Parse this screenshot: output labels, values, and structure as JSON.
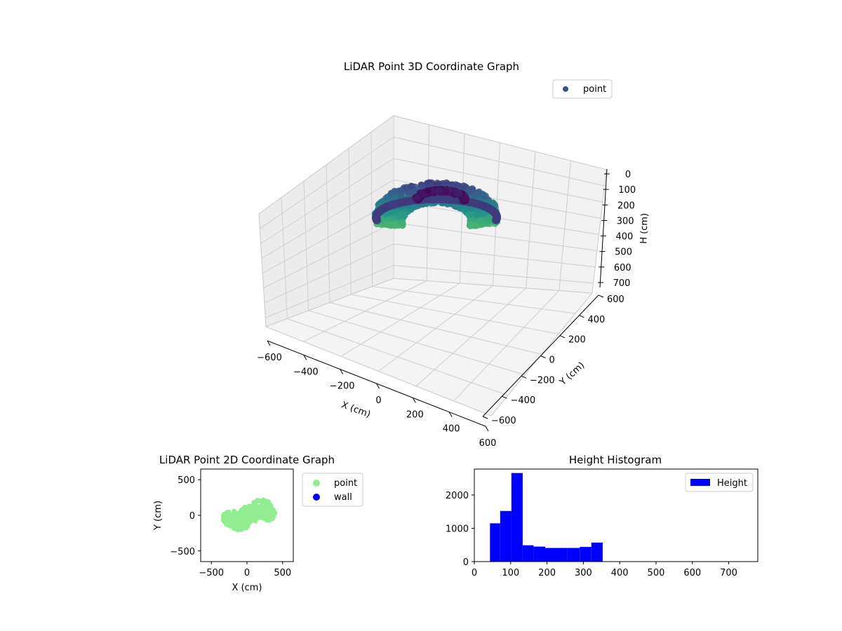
{
  "chart_data": [
    {
      "type": "scatter",
      "projection": "3d",
      "title": "LiDAR Point 3D Coordinate Graph",
      "xlabel": "X (cm)",
      "ylabel": "Y (cm)",
      "zlabel": "H (cm)",
      "xlim": [
        -600,
        600
      ],
      "ylim": [
        -600,
        600
      ],
      "zlim": [
        0,
        700
      ],
      "z_inverted": true,
      "xticks": [
        "−600",
        "−400",
        "−200",
        "0",
        "200",
        "400",
        "600"
      ],
      "yticks": [
        "−600",
        "−400",
        "−200",
        "0",
        "200",
        "400",
        "600"
      ],
      "zticks": [
        "0",
        "100",
        "200",
        "300",
        "400",
        "500",
        "600",
        "700"
      ],
      "grid": true,
      "colormap": "viridis",
      "legend": {
        "placement": "top-right",
        "entries": [
          {
            "label": "point",
            "color": "#3b528b"
          }
        ]
      },
      "series": [
        {
          "name": "point",
          "shape": "bowl-shaped point cloud with a separate upper arc",
          "x_range": [
            -350,
            380
          ],
          "y_range": [
            -260,
            260
          ],
          "h_range": [
            40,
            360
          ]
        }
      ]
    },
    {
      "type": "scatter",
      "title": "LiDAR Point 2D Coordinate Graph",
      "xlabel": "X (cm)",
      "ylabel": "Y (cm)",
      "xlim": [
        -650,
        650
      ],
      "ylim": [
        -650,
        650
      ],
      "xticks": [
        "−500",
        "0",
        "500"
      ],
      "yticks": [
        "−500",
        "0",
        "500"
      ],
      "legend": {
        "placement": "outside right",
        "entries": [
          {
            "label": "point",
            "color": "#90ee90"
          },
          {
            "label": "wall",
            "color": "#0000ff"
          }
        ]
      },
      "series": [
        {
          "name": "point",
          "color": "#90ee90",
          "x_range": [
            -360,
            380
          ],
          "y_range": [
            -250,
            260
          ]
        },
        {
          "name": "wall",
          "color": "#0000ff",
          "count": 0
        }
      ]
    },
    {
      "type": "bar",
      "subtype": "histogram",
      "title": "Height Histogram",
      "xlabel": "",
      "ylabel": "",
      "xlim": [
        0,
        780
      ],
      "ylim": [
        0,
        2780
      ],
      "xticks": [
        "0",
        "100",
        "200",
        "300",
        "400",
        "500",
        "600",
        "700"
      ],
      "yticks": [
        "0",
        "1000",
        "2000"
      ],
      "color": "#0000ff",
      "legend": {
        "placement": "top-right",
        "entries": [
          {
            "label": "Height",
            "color": "#0000ff"
          }
        ]
      },
      "bin_edges": [
        43,
        71,
        102,
        133,
        163,
        195,
        225,
        256,
        290,
        322,
        353
      ],
      "counts": [
        1150,
        1520,
        2660,
        490,
        450,
        410,
        410,
        410,
        440,
        570
      ]
    }
  ]
}
